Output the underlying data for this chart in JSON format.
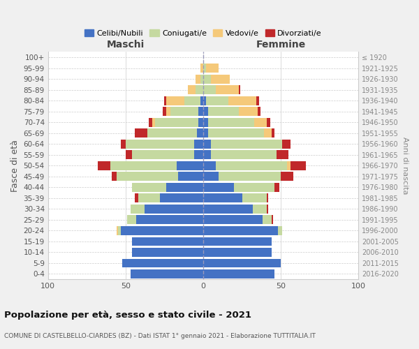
{
  "age_groups_bottom_to_top": [
    "0-4",
    "5-9",
    "10-14",
    "15-19",
    "20-24",
    "25-29",
    "30-34",
    "35-39",
    "40-44",
    "45-49",
    "50-54",
    "55-59",
    "60-64",
    "65-69",
    "70-74",
    "75-79",
    "80-84",
    "85-89",
    "90-94",
    "95-99",
    "100+"
  ],
  "birth_years_bottom_to_top": [
    "2016-2020",
    "2011-2015",
    "2006-2010",
    "2001-2005",
    "1996-2000",
    "1991-1995",
    "1986-1990",
    "1981-1985",
    "1976-1980",
    "1971-1975",
    "1966-1970",
    "1961-1965",
    "1956-1960",
    "1951-1955",
    "1946-1950",
    "1941-1945",
    "1936-1940",
    "1931-1935",
    "1926-1930",
    "1921-1925",
    "≤ 1920"
  ],
  "colors": {
    "celibi": "#4472C4",
    "coniugati": "#C5D9A0",
    "vedovi": "#F5C97A",
    "divorziati": "#C0282A"
  },
  "maschi_celibi": [
    47,
    52,
    46,
    46,
    53,
    43,
    38,
    28,
    24,
    16,
    17,
    6,
    6,
    4,
    3,
    3,
    2,
    0,
    0,
    0,
    0
  ],
  "maschi_coniugati": [
    0,
    0,
    0,
    0,
    2,
    6,
    9,
    14,
    22,
    40,
    43,
    40,
    44,
    32,
    28,
    18,
    10,
    5,
    2,
    0,
    0
  ],
  "maschi_vedovi": [
    0,
    0,
    0,
    0,
    1,
    0,
    0,
    0,
    0,
    0,
    0,
    0,
    0,
    0,
    2,
    3,
    12,
    5,
    3,
    2,
    0
  ],
  "maschi_divorziati": [
    0,
    0,
    0,
    0,
    0,
    0,
    0,
    2,
    0,
    3,
    8,
    4,
    3,
    8,
    2,
    2,
    1,
    0,
    0,
    0,
    0
  ],
  "femmine_celibi": [
    46,
    50,
    44,
    44,
    48,
    38,
    32,
    25,
    20,
    10,
    8,
    5,
    5,
    3,
    3,
    3,
    2,
    0,
    0,
    0,
    0
  ],
  "femmine_coniugati": [
    0,
    0,
    0,
    0,
    3,
    6,
    9,
    16,
    26,
    40,
    46,
    42,
    46,
    36,
    30,
    20,
    14,
    8,
    5,
    2,
    0
  ],
  "femmine_vedovi": [
    0,
    0,
    0,
    0,
    0,
    0,
    0,
    0,
    0,
    0,
    2,
    0,
    0,
    5,
    8,
    12,
    18,
    15,
    12,
    8,
    0
  ],
  "femmine_divorziati": [
    0,
    0,
    0,
    0,
    0,
    1,
    1,
    1,
    3,
    8,
    10,
    8,
    5,
    2,
    2,
    2,
    2,
    1,
    0,
    0,
    0
  ],
  "title": "Popolazione per età, sesso e stato civile - 2021",
  "subtitle": "COMUNE DI CASTELBELLO-CIARDES (BZ) - Dati ISTAT 1° gennaio 2021 - Elaborazione TUTTITALIA.IT",
  "legend_labels": [
    "Celibi/Nubili",
    "Coniugati/e",
    "Vedovi/e",
    "Divorziati/e"
  ],
  "xlim": 100,
  "bg_color": "#f0f0f0",
  "plot_bg": "#ffffff"
}
